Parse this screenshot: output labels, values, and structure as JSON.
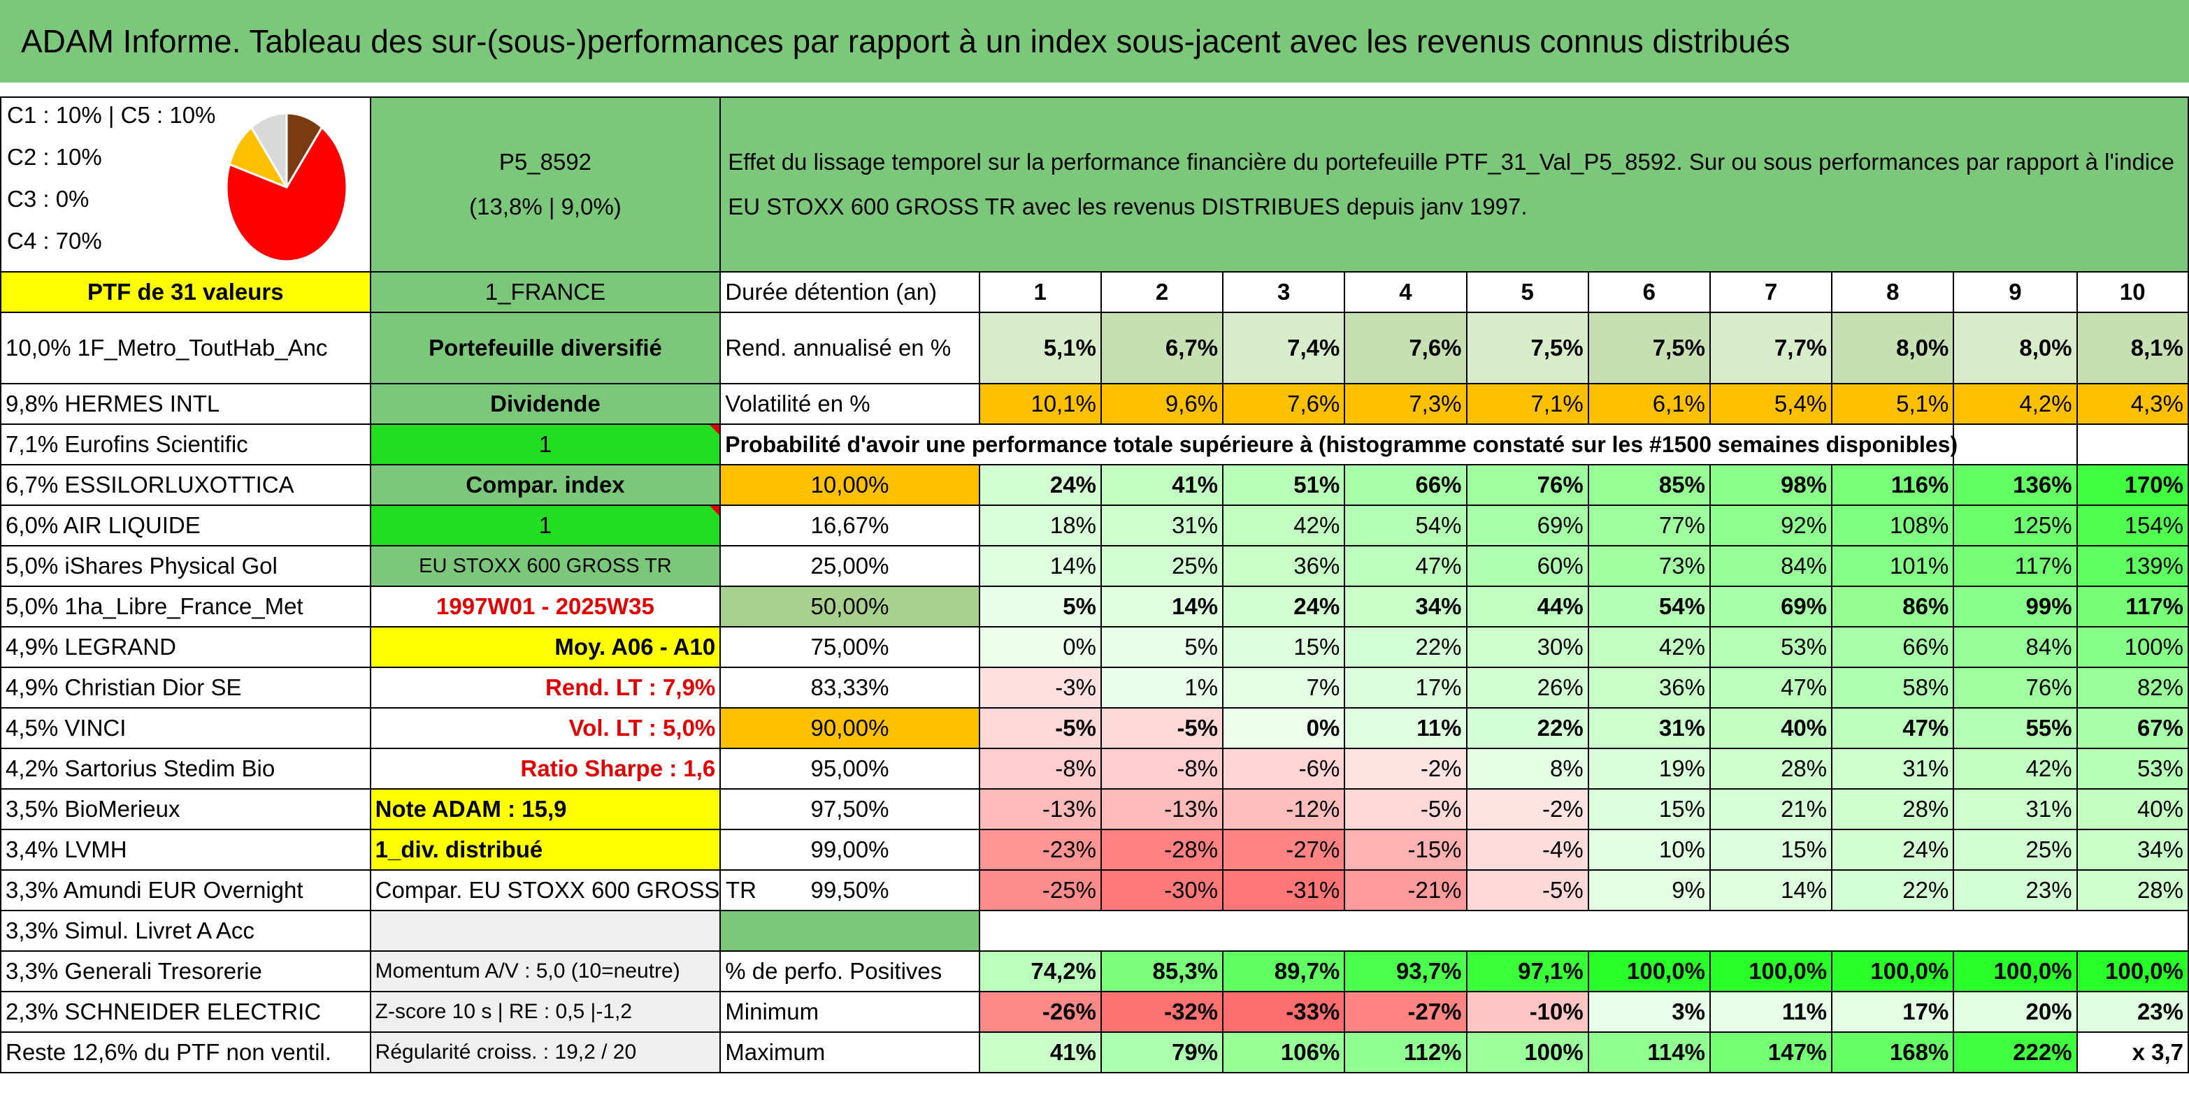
{
  "title": "ADAM Informe. Tableau des sur-(sous-)performances par rapport à un index sous-jacent avec les revenus connus distribués",
  "allocation": {
    "lines": [
      "C1 : 10% | C5 : 10%",
      "C2 : 10%",
      "C3 : 0%",
      "C4 : 70%"
    ],
    "pie_slices": [
      {
        "label": "C1",
        "value": 10,
        "color": "#ffc000"
      },
      {
        "label": "C2",
        "value": 10,
        "color": "#d9d9d9"
      },
      {
        "label": "C3",
        "value": 0,
        "color": "#a0a0a0"
      },
      {
        "label": "C5",
        "value": 10,
        "color": "#7a3b12"
      },
      {
        "label": "C4",
        "value": 70,
        "color": "#ff0000"
      }
    ]
  },
  "portfolio": {
    "code": "P5_8592",
    "stats": "(13,8% | 9,0%)",
    "description": "Effet du lissage temporel sur la performance financière du portefeuille PTF_31_Val_P5_8592. Sur ou sous performances par rapport à l'indice EU STOXX 600 GROSS TR avec les revenus DISTRIBUES depuis janv 1997."
  },
  "holdings_header": "PTF de 31 valeurs",
  "holdings": [
    "10,0% 1F_Metro_ToutHab_Anc",
    "9,8% HERMES INTL",
    "7,1% Eurofins Scientific",
    "6,7% ESSILORLUXOTTICA",
    "6,0% AIR LIQUIDE",
    "5,0% iShares Physical Gol",
    "5,0% 1ha_Libre_France_Met",
    "4,9% LEGRAND",
    "4,9% Christian Dior SE",
    "4,5% VINCI",
    "4,2% Sartorius Stedim Bio",
    "3,5% BioMerieux",
    "3,4% LVMH",
    "3,3% Amundi EUR Overnight",
    "3,3% Simul. Livret A Acc",
    "3,3% Generali Tresorerie",
    "2,3% SCHNEIDER ELECTRIC",
    "Reste 12,6% du PTF non ventil."
  ],
  "info_col": [
    "1_FRANCE",
    "Portefeuille diversifié",
    "Dividende",
    "1",
    "Compar. index",
    "1",
    "EU STOXX 600 GROSS TR",
    "1997W01 - 2025W35",
    "Moy. A06 - A10",
    "Rend. LT : 7,9%",
    "Vol. LT : 5,0%",
    "Ratio Sharpe : 1,6",
    "Note ADAM : 15,9",
    "1_div. distribué",
    "Compar. EU STOXX 600 GROSS TR",
    "",
    "Momentum A/V : 5,0 (10=neutre)",
    "Z-score 10 s | RE : 0,5 |-1,2",
    "Régularité croiss. : 19,2 / 20"
  ],
  "years_label": "Durée détention (an)",
  "years": [
    "1",
    "2",
    "3",
    "4",
    "5",
    "6",
    "7",
    "8",
    "9",
    "10"
  ],
  "rend_label": "Rend. annualisé en %",
  "rend": [
    "5,1%",
    "6,7%",
    "7,4%",
    "7,6%",
    "7,5%",
    "7,5%",
    "7,7%",
    "8,0%",
    "8,0%",
    "8,1%"
  ],
  "vol_label": "Volatilité en %",
  "vol": [
    "10,1%",
    "9,6%",
    "7,6%",
    "7,3%",
    "7,1%",
    "6,1%",
    "5,4%",
    "5,1%",
    "4,2%",
    "4,3%"
  ],
  "prob_header": "Probabilité d'avoir une performance totale supérieure à (histogramme constaté sur les #1500 semaines disponibles)",
  "prob_rows": [
    {
      "p": "10,00%",
      "v": [
        "24%",
        "41%",
        "51%",
        "66%",
        "76%",
        "85%",
        "98%",
        "116%",
        "136%",
        "170%"
      ]
    },
    {
      "p": "16,67%",
      "v": [
        "18%",
        "31%",
        "42%",
        "54%",
        "69%",
        "77%",
        "92%",
        "108%",
        "125%",
        "154%"
      ]
    },
    {
      "p": "25,00%",
      "v": [
        "14%",
        "25%",
        "36%",
        "47%",
        "60%",
        "73%",
        "84%",
        "101%",
        "117%",
        "139%"
      ]
    },
    {
      "p": "50,00%",
      "v": [
        "5%",
        "14%",
        "24%",
        "34%",
        "44%",
        "54%",
        "69%",
        "86%",
        "99%",
        "117%"
      ]
    },
    {
      "p": "75,00%",
      "v": [
        "0%",
        "5%",
        "15%",
        "22%",
        "30%",
        "42%",
        "53%",
        "66%",
        "84%",
        "100%"
      ]
    },
    {
      "p": "83,33%",
      "v": [
        "-3%",
        "1%",
        "7%",
        "17%",
        "26%",
        "36%",
        "47%",
        "58%",
        "76%",
        "82%"
      ]
    },
    {
      "p": "90,00%",
      "v": [
        "-5%",
        "-5%",
        "0%",
        "11%",
        "22%",
        "31%",
        "40%",
        "47%",
        "55%",
        "67%"
      ]
    },
    {
      "p": "95,00%",
      "v": [
        "-8%",
        "-8%",
        "-6%",
        "-2%",
        "8%",
        "19%",
        "28%",
        "31%",
        "42%",
        "53%"
      ]
    },
    {
      "p": "97,50%",
      "v": [
        "-13%",
        "-13%",
        "-12%",
        "-5%",
        "-2%",
        "15%",
        "21%",
        "28%",
        "31%",
        "40%"
      ]
    },
    {
      "p": "99,00%",
      "v": [
        "-23%",
        "-28%",
        "-27%",
        "-15%",
        "-4%",
        "10%",
        "15%",
        "24%",
        "25%",
        "34%"
      ]
    },
    {
      "p": "99,50%",
      "v": [
        "-25%",
        "-30%",
        "-31%",
        "-21%",
        "-5%",
        "9%",
        "14%",
        "22%",
        "23%",
        "28%"
      ]
    }
  ],
  "pos_label": "% de perfo. Positives",
  "pos": [
    "74,2%",
    "85,3%",
    "89,7%",
    "93,7%",
    "97,1%",
    "100,0%",
    "100,0%",
    "100,0%",
    "100,0%",
    "100,0%"
  ],
  "min_label": "Minimum",
  "min": [
    "-26%",
    "-32%",
    "-33%",
    "-27%",
    "-10%",
    "3%",
    "11%",
    "17%",
    "20%",
    "23%"
  ],
  "max_label": "Maximum",
  "max": [
    "41%",
    "79%",
    "106%",
    "112%",
    "100%",
    "114%",
    "147%",
    "168%",
    "222%",
    "x 3,7"
  ],
  "colors": {
    "header_green": "#7bc87b",
    "yellow": "#ffff00",
    "orange": "#ffc000",
    "bright_green": "#22dd22",
    "red_text": "#e00000"
  }
}
